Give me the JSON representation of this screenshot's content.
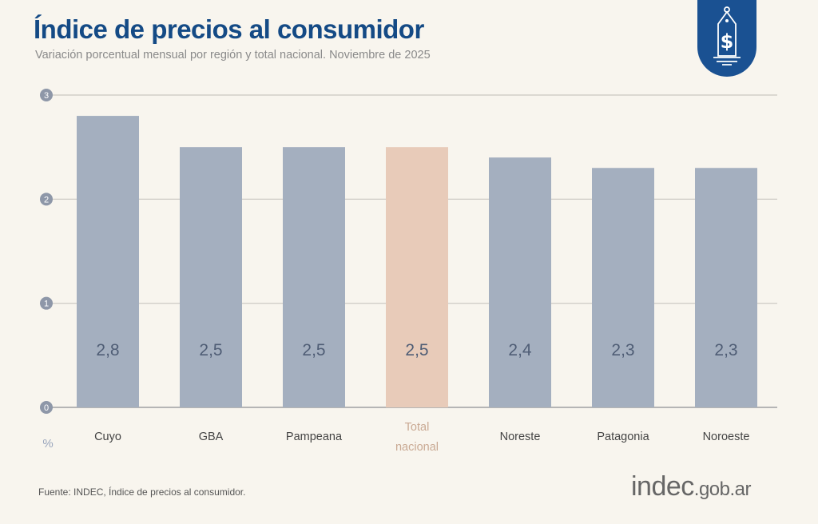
{
  "header": {
    "title": "Índice de precios al consumidor",
    "subtitle": "Variación porcentual mensual por región y total nacional. Noviembre de 2025",
    "badge_icon": "price-tag-dollar-icon"
  },
  "footer": {
    "source": "Fuente: INDEC, Índice de precios al consumidor.",
    "logo_main": "indec",
    "logo_suffix": ".gob.ar"
  },
  "colors": {
    "bar": "#a4afbf",
    "highlight": "#e8cbb9",
    "title": "#144a85",
    "badge": "#1a5192"
  },
  "chart_data": {
    "type": "bar",
    "title": "Índice de precios al consumidor",
    "ylabel": "%",
    "ylim": [
      0,
      3
    ],
    "yticks": [
      "0",
      "1",
      "2",
      "3"
    ],
    "grid": true,
    "categories": [
      "Cuyo",
      "GBA",
      "Pampeana",
      "Total nacional",
      "Noreste",
      "Patagonia",
      "Noroeste"
    ],
    "values": [
      2.8,
      2.5,
      2.5,
      2.5,
      2.4,
      2.3,
      2.3
    ],
    "labels": [
      "2,8",
      "2,5",
      "2,5",
      "2,5",
      "2,4",
      "2,3",
      "2,3"
    ],
    "highlight_index": 3
  }
}
